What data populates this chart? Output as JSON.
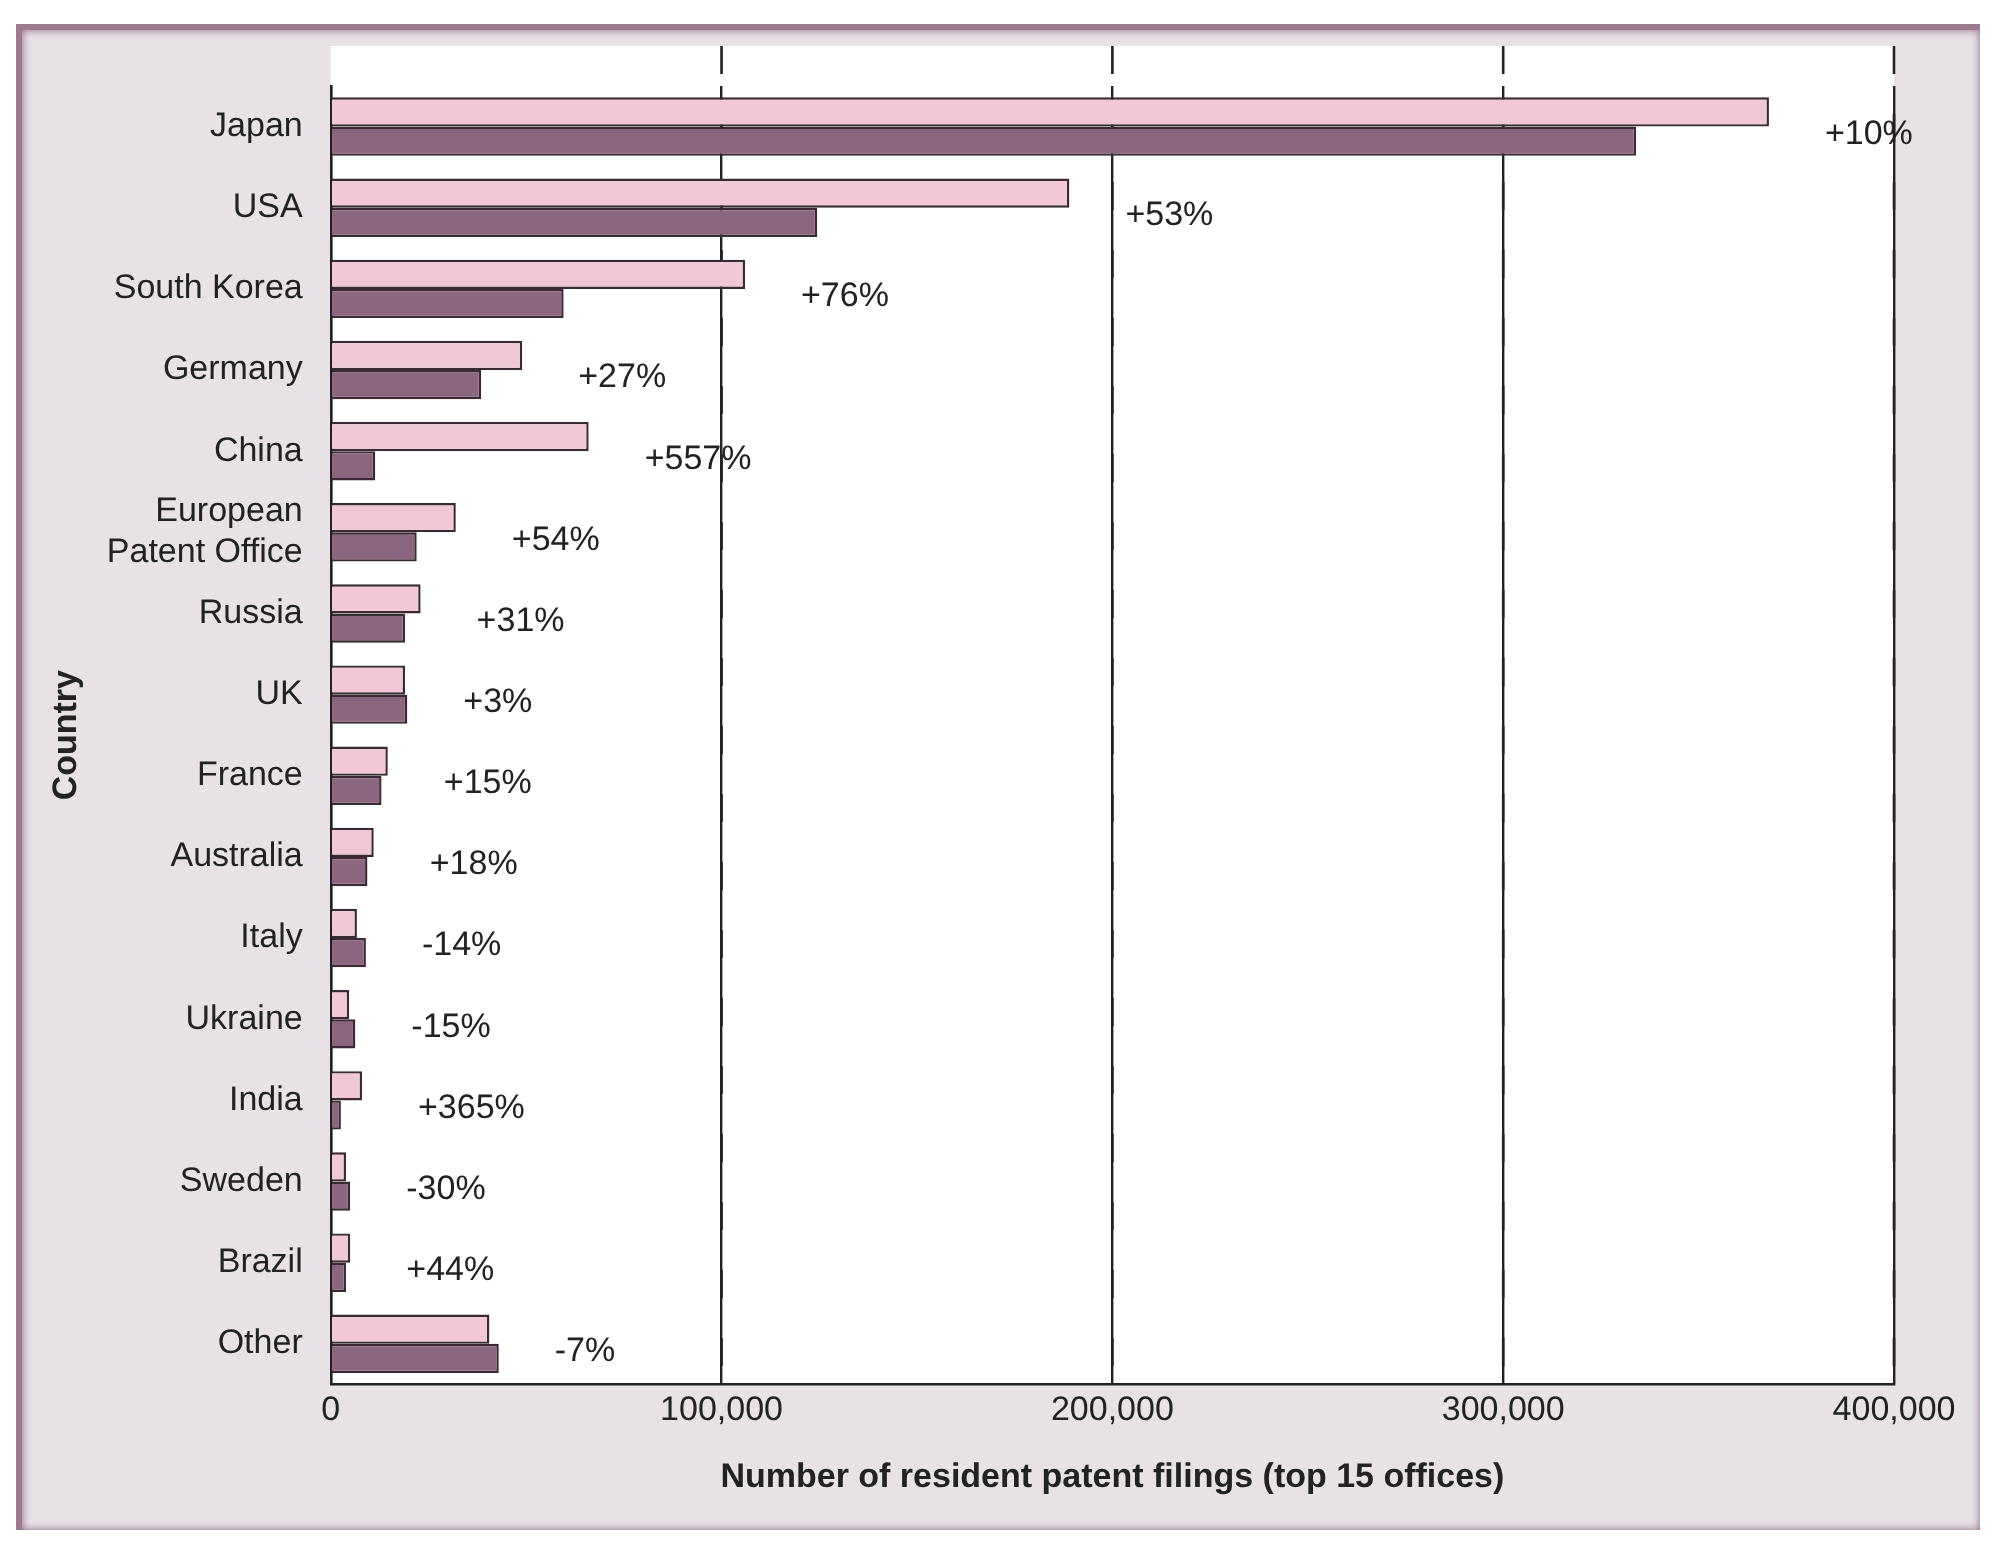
{
  "chart_data": {
    "type": "bar",
    "orientation": "horizontal",
    "xlabel": "Number of resident patent filings (top 15 offices)",
    "ylabel": "Country",
    "categories": [
      "Japan",
      "USA",
      "South Korea",
      "Germany",
      "China",
      "European Patent Office",
      "Russia",
      "UK",
      "France",
      "Australia",
      "Italy",
      "Ukraine",
      "India",
      "Sweden",
      "Brazil",
      "Other"
    ],
    "series": [
      {
        "color": "#f0c8d8",
        "values": [
          368000,
          189000,
          106000,
          49000,
          66000,
          32000,
          23000,
          19000,
          14600,
          11000,
          6700,
          4700,
          8000,
          3900,
          5000,
          40600
        ]
      },
      {
        "color": "#8c6680",
        "values": [
          334000,
          124500,
          59600,
          38500,
          11400,
          22000,
          19000,
          19600,
          13000,
          9400,
          9000,
          6300,
          2600,
          5000,
          3900,
          43000
        ]
      }
    ],
    "xlim": [
      0,
      400000
    ],
    "xticks": [
      {
        "value": 0,
        "label": "0"
      },
      {
        "value": 100000,
        "label": "100,000"
      },
      {
        "value": 200000,
        "label": "200,000"
      },
      {
        "value": 300000,
        "label": "300,000"
      },
      {
        "value": 400000,
        "label": "400,000"
      }
    ],
    "grid": "x",
    "annotations": [
      {
        "text": "+10%",
        "x": 368000,
        "y": "Japan"
      },
      {
        "text": "+53%",
        "x": 189000,
        "y": "USA"
      },
      {
        "text": "+76%",
        "x": 106000,
        "y": "South Korea"
      },
      {
        "text": "+27%",
        "x": 49000,
        "y": "Germany"
      },
      {
        "text": "+557%",
        "x": 66000,
        "y": "China"
      },
      {
        "text": "+54%",
        "x": 32000,
        "y": "European Patent Office"
      },
      {
        "text": "+31%",
        "x": 23000,
        "y": "Russia"
      },
      {
        "text": "+3%",
        "x": 19600,
        "y": "UK"
      },
      {
        "text": "+15%",
        "x": 14600,
        "y": "France"
      },
      {
        "text": "+18%",
        "x": 11000,
        "y": "Australia"
      },
      {
        "text": "-14%",
        "x": 9000,
        "y": "Italy"
      },
      {
        "text": "-15%",
        "x": 6300,
        "y": "Ukraine"
      },
      {
        "text": "+365%",
        "x": 8000,
        "y": "India"
      },
      {
        "text": "-30%",
        "x": 5000,
        "y": "Sweden"
      },
      {
        "text": "+44%",
        "x": 5000,
        "y": "Brazil"
      },
      {
        "text": "-7%",
        "x": 43000,
        "y": "Other"
      }
    ]
  }
}
